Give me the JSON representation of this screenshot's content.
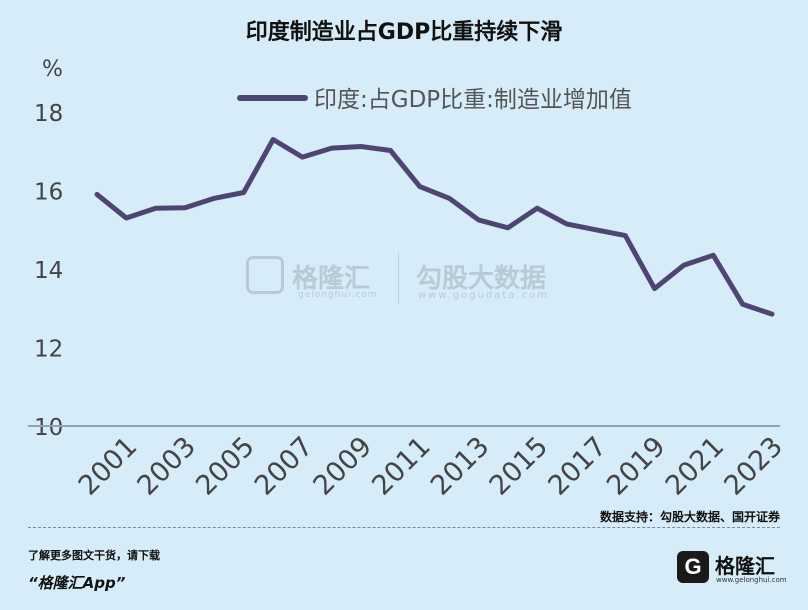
{
  "title": "印度制造业占GDP比重持续下滑",
  "source": "数据支持：勾股大数据、国开证券",
  "footer": {
    "line1": "了解更多图文干货，请下载",
    "line2": "“格隆汇App”"
  },
  "watermark": {
    "left_text": "格隆汇",
    "left_sub": "gelonghui.com",
    "right_text": "勾股大数据",
    "right_sub": "www.gogudata.com"
  },
  "brand": {
    "name": "格隆汇",
    "url": "www.gelonghui.com"
  },
  "colors": {
    "line": "#4f4572",
    "background": "#d6ecf8",
    "axis": "#8fa3b3"
  },
  "chart_data": {
    "type": "line",
    "title": "印度制造业占GDP比重持续下滑",
    "ylabel": "%",
    "ylim": [
      10,
      19
    ],
    "yticks": [
      10,
      12,
      14,
      16,
      18
    ],
    "xticks": [
      "2001",
      "2003",
      "2005",
      "2007",
      "2009",
      "2011",
      "2013",
      "2015",
      "2017",
      "2019",
      "2021",
      "2023"
    ],
    "legend": "top-center",
    "grid": false,
    "x": [
      2000,
      2001,
      2002,
      2003,
      2004,
      2005,
      2006,
      2007,
      2008,
      2009,
      2010,
      2011,
      2012,
      2013,
      2014,
      2015,
      2016,
      2017,
      2018,
      2019,
      2020,
      2021,
      2022,
      2023
    ],
    "series": [
      {
        "name": "印度:占GDP比重:制造业增加值",
        "values": [
          15.9,
          15.3,
          15.55,
          15.56,
          15.8,
          15.95,
          17.3,
          16.85,
          17.08,
          17.12,
          17.02,
          16.1,
          15.8,
          15.25,
          15.05,
          15.55,
          15.15,
          15.0,
          14.85,
          13.5,
          14.1,
          14.35,
          13.1,
          12.85
        ]
      }
    ]
  }
}
